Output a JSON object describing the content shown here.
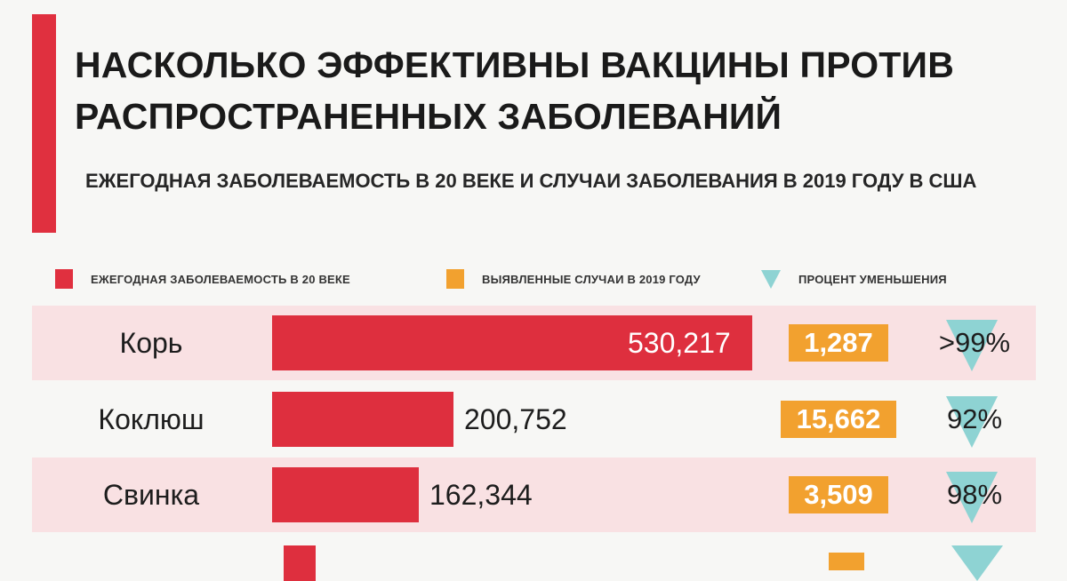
{
  "title": "НАСКОЛЬКО ЭФФЕКТИВНЫ ВАКЦИНЫ ПРОТИВ РАСПРОСТРАНЕННЫХ ЗАБОЛЕВАНИЙ",
  "subtitle": "ЕЖЕГОДНАЯ ЗАБОЛЕВАЕМОСТЬ В 20 ВЕКЕ И СЛУЧАИ ЗАБОЛЕВАНИЯ В 2019 ГОДУ В США",
  "colors": {
    "accent": "#e0303f",
    "bar": "#de2f3e",
    "cases": "#f2a12f",
    "reduction": "#8ed3d3",
    "row_shade": "#f9e1e3"
  },
  "legend": [
    {
      "label": "ЕЖЕГОДНАЯ ЗАБОЛЕВАЕМОСТЬ В 20 ВЕКЕ",
      "color": "#e0303f",
      "icon": "square"
    },
    {
      "label": "ВЫЯВЛЕННЫЕ СЛУЧАИ В 2019 ГОДУ",
      "color": "#f2a12f",
      "icon": "square"
    },
    {
      "label": "ПРОЦЕНТ УМЕНЬШЕНИЯ",
      "color": "#8ed3d3",
      "icon": "down-triangle"
    }
  ],
  "chart_data": {
    "type": "bar",
    "orientation": "horizontal",
    "title": "НАСКОЛЬКО ЭФФЕКТИВНЫ ВАКЦИНЫ ПРОТИВ РАСПРОСТРАНЕННЫХ ЗАБОЛЕВАНИЙ",
    "subtitle": "ЕЖЕГОДНАЯ ЗАБОЛЕВАЕМОСТЬ В 20 ВЕКЕ И СЛУЧАИ ЗАБОЛЕВАНИЯ В 2019 ГОДУ В США",
    "categories": [
      "Корь",
      "Коклюш",
      "Свинка"
    ],
    "series": [
      {
        "name": "ЕЖЕГОДНАЯ ЗАБОЛЕВАЕМОСТЬ В 20 ВЕКЕ",
        "values": [
          530217,
          200752,
          162344
        ],
        "labels": [
          "530,217",
          "200,752",
          "162,344"
        ]
      },
      {
        "name": "ВЫЯВЛЕННЫЕ СЛУЧАИ В 2019 ГОДУ",
        "values": [
          1287,
          15662,
          3509
        ],
        "labels": [
          "1,287",
          "15,662",
          "3,509"
        ]
      },
      {
        "name": "ПРОЦЕНТ УМЕНЬШЕНИЯ",
        "labels": [
          ">99%",
          "92%",
          "98%"
        ]
      }
    ],
    "xlim": [
      0,
      530217
    ],
    "grid": false,
    "legend_position": "top"
  }
}
